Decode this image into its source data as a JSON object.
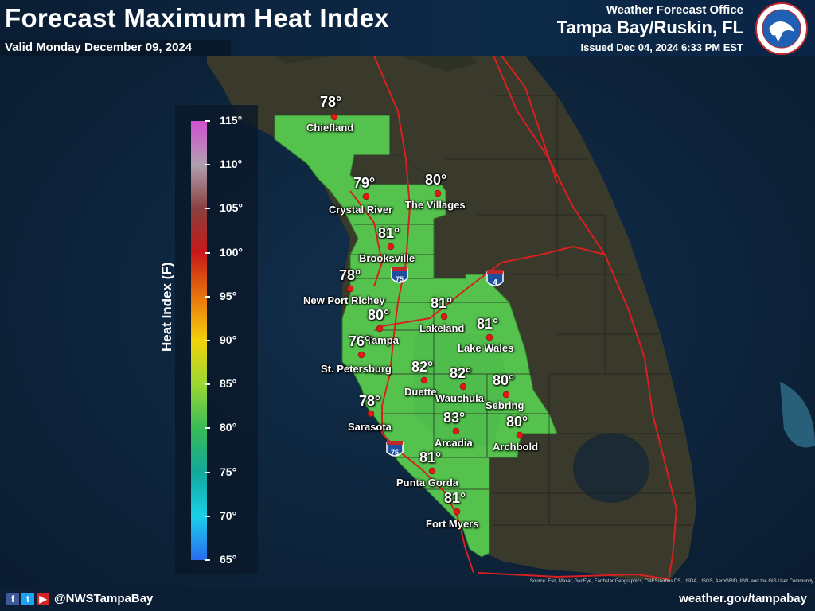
{
  "header": {
    "title": "Forecast Maximum Heat Index",
    "valid": "Valid Monday December 09, 2024",
    "office_line1": "Weather Forecast Office",
    "office_line2": "Tampa Bay/Ruskin, FL",
    "issued": "Issued Dec 04, 2024 6:33 PM EST"
  },
  "logo": {
    "text": "NATIONAL WEATHER SERVICE",
    "icon": "nws-logo"
  },
  "legend": {
    "title": "Heat Index (F)",
    "ticks": [
      "115°",
      "110°",
      "105°",
      "100°",
      "95°",
      "90°",
      "85°",
      "80°",
      "75°",
      "70°",
      "65°"
    ],
    "range": [
      65,
      115
    ],
    "colors": [
      "#d24fd0",
      "#8a4040",
      "#c81818",
      "#e8740d",
      "#f2d20a",
      "#9bd832",
      "#38bc58",
      "#12a89c",
      "#1ad0e8",
      "#2a6cf0"
    ]
  },
  "cities": [
    {
      "name": "Chiefland",
      "temp": "78°",
      "value": 78
    },
    {
      "name": "Crystal River",
      "temp": "79°",
      "value": 79
    },
    {
      "name": "The Villages",
      "temp": "80°",
      "value": 80
    },
    {
      "name": "Brooksville",
      "temp": "81°",
      "value": 81
    },
    {
      "name": "New Port Richey",
      "temp": "78°",
      "value": 78
    },
    {
      "name": "Lakeland",
      "temp": "81°",
      "value": 81
    },
    {
      "name": "Tampa",
      "temp": "80°",
      "value": 80
    },
    {
      "name": "Lake Wales",
      "temp": "81°",
      "value": 81
    },
    {
      "name": "St. Petersburg",
      "temp": "76°",
      "value": 76
    },
    {
      "name": "Duette",
      "temp": "82°",
      "value": 82
    },
    {
      "name": "Wauchula",
      "temp": "82°",
      "value": 82
    },
    {
      "name": "Sebring",
      "temp": "80°",
      "value": 80
    },
    {
      "name": "Sarasota",
      "temp": "78°",
      "value": 78
    },
    {
      "name": "Arcadia",
      "temp": "83°",
      "value": 83
    },
    {
      "name": "Archbold",
      "temp": "80°",
      "value": 80
    },
    {
      "name": "Punta Gorda",
      "temp": "81°",
      "value": 81
    },
    {
      "name": "Fort Myers",
      "temp": "81°",
      "value": 81
    }
  ],
  "highways": [
    {
      "label": "75",
      "icon": "interstate-shield-icon"
    },
    {
      "label": "4",
      "icon": "interstate-shield-icon"
    },
    {
      "label": "75",
      "icon": "interstate-shield-icon"
    }
  ],
  "footer": {
    "handle": "@NWSTampaBay",
    "site": "weather.gov/tampabay",
    "social_icons": [
      "facebook-icon",
      "twitter-icon",
      "youtube-icon"
    ],
    "source": "Source: Esri, Maxar, GeoEye, Earthstar Geographics, CNES/Airbus DS, USDA, USGS, AeroGRID, IGN, and the GIS User Community"
  }
}
